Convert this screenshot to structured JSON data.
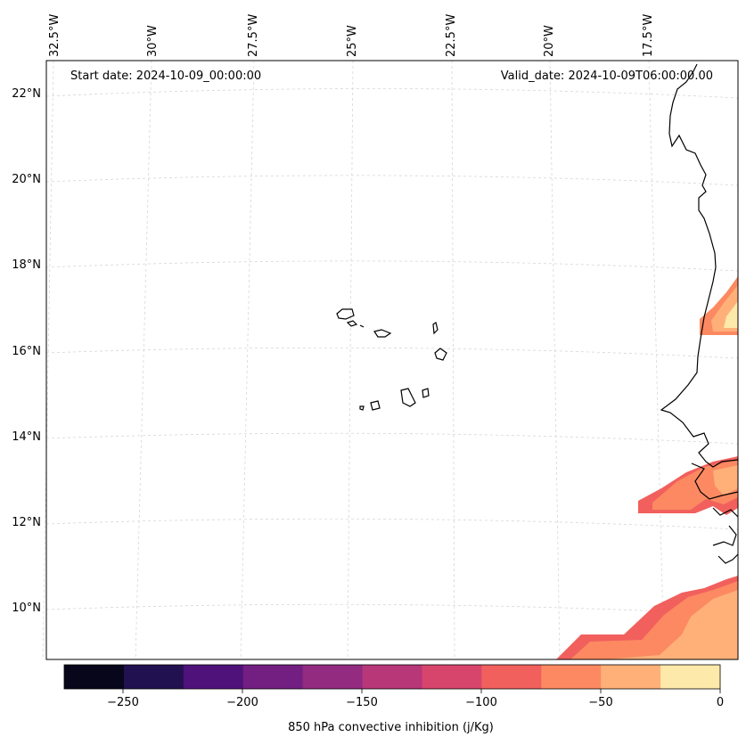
{
  "map": {
    "lon_labels": [
      "32.5°W",
      "30°W",
      "27.5°W",
      "25°W",
      "22.5°W",
      "20°W",
      "17.5°W"
    ],
    "lat_labels": [
      "22°N",
      "20°N",
      "18°N",
      "16°N",
      "14°N",
      "12°N",
      "10°N"
    ],
    "start_date": "Start date: 2024-10-09_00:00:00",
    "valid_date": "Valid_date: 2024-10-09T06:00:00.00"
  },
  "colorbar": {
    "label": "850 hPa convective inhibition (j/Kg)",
    "ticks": [
      "−250",
      "−200",
      "−150",
      "−100",
      "−50",
      "0"
    ],
    "colors": [
      "#07061a",
      "#221150",
      "#4f127b",
      "#721f81",
      "#932b80",
      "#b73779",
      "#d8456c",
      "#f1605d",
      "#fc8961",
      "#feb078",
      "#fde9a9"
    ]
  },
  "colors": {
    "coastline": "#000000",
    "gridline": "#d0d0d0"
  }
}
